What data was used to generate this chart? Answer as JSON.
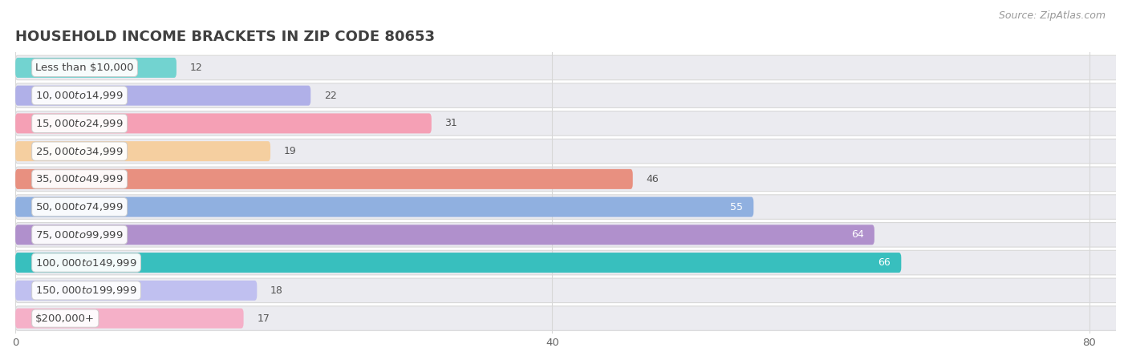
{
  "title": "HOUSEHOLD INCOME BRACKETS IN ZIP CODE 80653",
  "source": "Source: ZipAtlas.com",
  "categories": [
    "Less than $10,000",
    "$10,000 to $14,999",
    "$15,000 to $24,999",
    "$25,000 to $34,999",
    "$35,000 to $49,999",
    "$50,000 to $74,999",
    "$75,000 to $99,999",
    "$100,000 to $149,999",
    "$150,000 to $199,999",
    "$200,000+"
  ],
  "values": [
    12,
    22,
    31,
    19,
    46,
    55,
    64,
    66,
    18,
    17
  ],
  "bar_colors": [
    "#72d3d0",
    "#b0b0e8",
    "#f5a0b5",
    "#f5cfa0",
    "#e89080",
    "#90b0e0",
    "#b090cc",
    "#38bfbe",
    "#c0c0f0",
    "#f5b0c8"
  ],
  "bg_strip_color": "#f0f0f5",
  "xlim": [
    0,
    82
  ],
  "xticks": [
    0,
    40,
    80
  ],
  "bar_height": 0.72,
  "title_color": "#404040",
  "title_fontsize": 13,
  "label_fontsize": 9.5,
  "value_fontsize": 9,
  "source_fontsize": 9,
  "source_color": "#999999",
  "bg_color": "#ffffff",
  "grid_color": "#d8d8d8",
  "row_bg_color": "#ebebf0"
}
